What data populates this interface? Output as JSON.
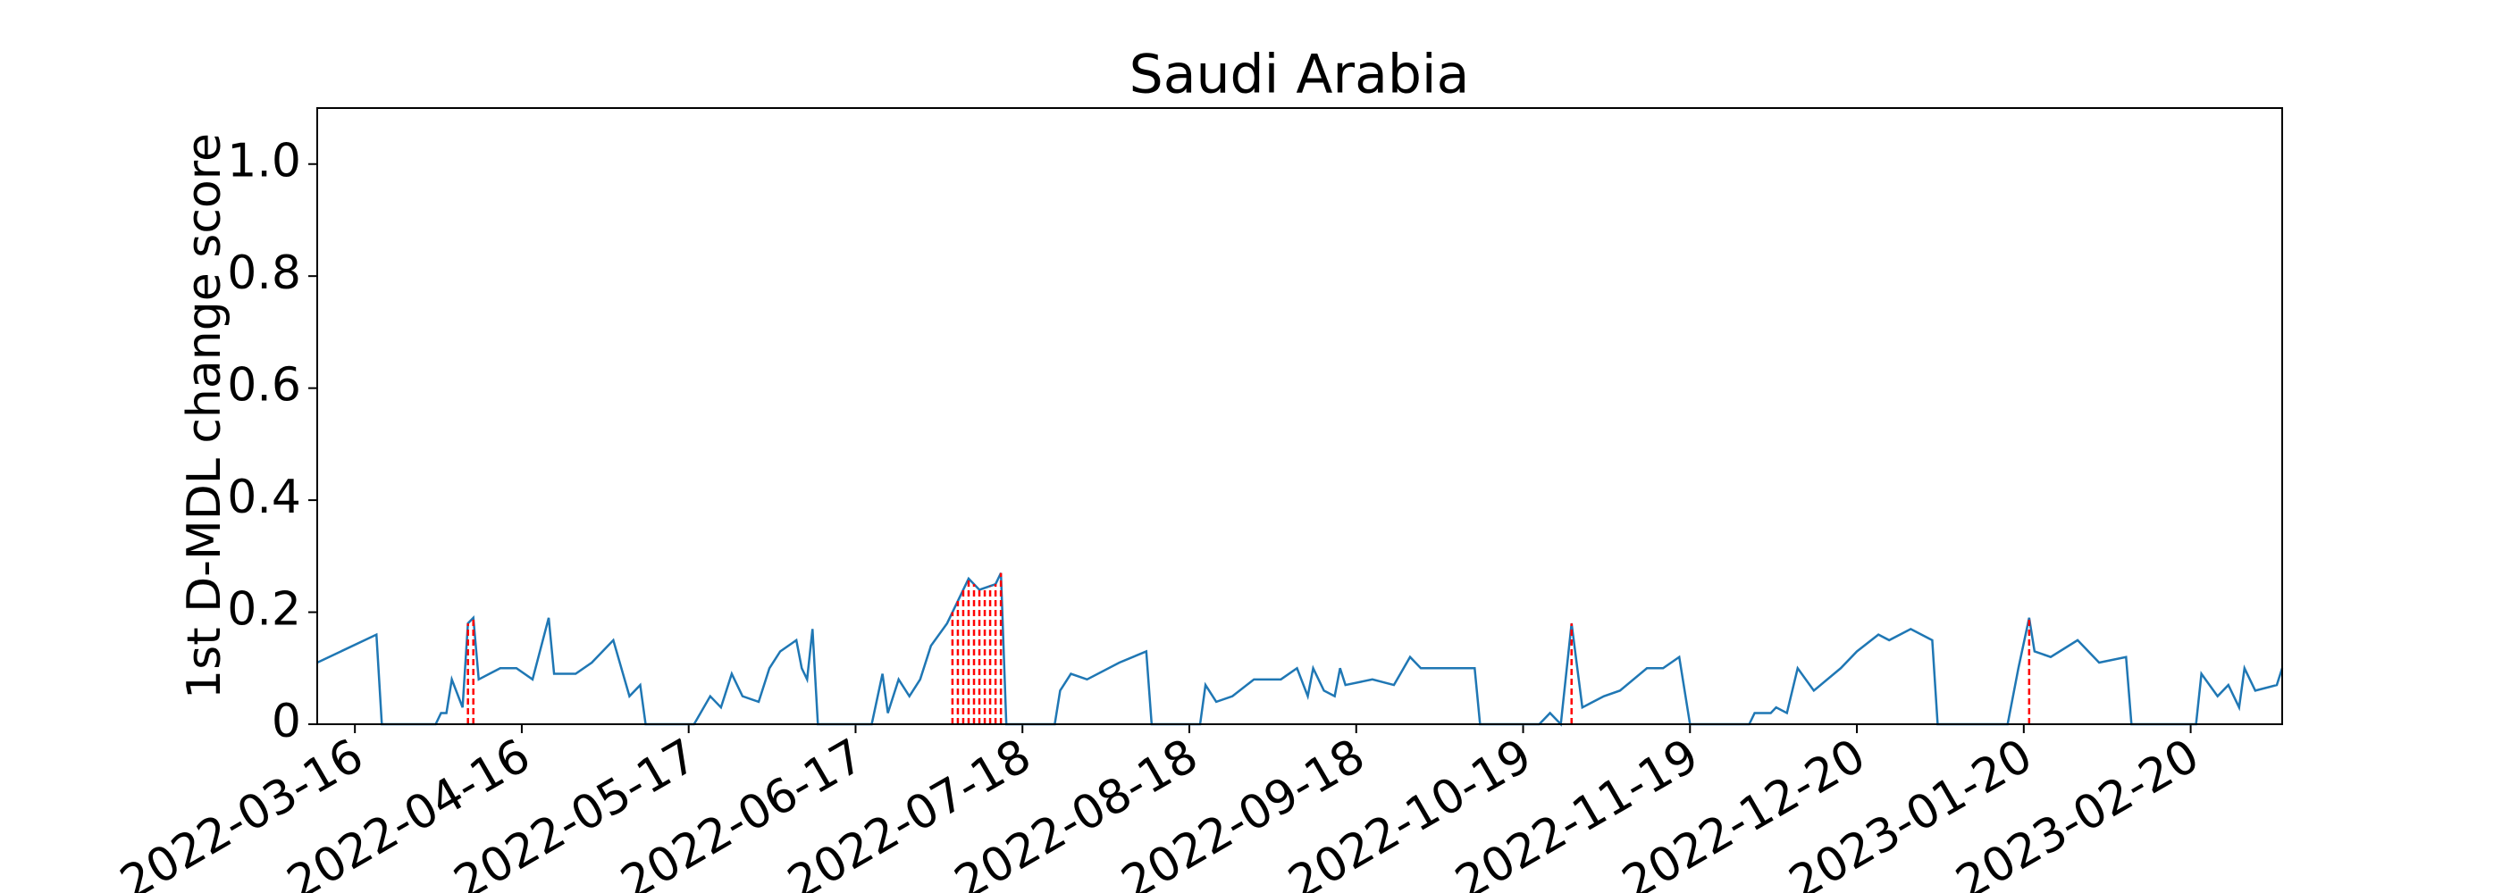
{
  "chart_data": {
    "type": "line",
    "title": "Saudi Arabia",
    "y_label": "1st D-MDL change score",
    "color": "#1f77b4",
    "x": [
      "2022-03-09",
      "2022-03-20",
      "2022-03-21",
      "2022-03-31",
      "2022-04-01",
      "2022-04-02",
      "2022-04-03",
      "2022-04-05",
      "2022-04-06",
      "2022-04-07",
      "2022-04-08",
      "2022-04-10",
      "2022-04-12",
      "2022-04-15",
      "2022-04-18",
      "2022-04-21",
      "2022-04-22",
      "2022-04-26",
      "2022-04-29",
      "2022-05-03",
      "2022-05-06",
      "2022-05-08",
      "2022-05-09",
      "2022-05-18",
      "2022-05-21",
      "2022-05-23",
      "2022-05-25",
      "2022-05-27",
      "2022-05-30",
      "2022-06-01",
      "2022-06-03",
      "2022-06-06",
      "2022-06-07",
      "2022-06-08",
      "2022-06-09",
      "2022-06-10",
      "2022-06-20",
      "2022-06-22",
      "2022-06-23",
      "2022-06-25",
      "2022-06-27",
      "2022-06-29",
      "2022-07-01",
      "2022-07-04",
      "2022-07-08",
      "2022-07-10",
      "2022-07-13",
      "2022-07-14",
      "2022-07-15",
      "2022-07-24",
      "2022-07-25",
      "2022-07-27",
      "2022-07-30",
      "2022-08-05",
      "2022-08-10",
      "2022-08-11",
      "2022-08-20",
      "2022-08-21",
      "2022-08-23",
      "2022-08-26",
      "2022-08-30",
      "2022-09-04",
      "2022-09-07",
      "2022-09-09",
      "2022-09-10",
      "2022-09-12",
      "2022-09-14",
      "2022-09-15",
      "2022-09-16",
      "2022-09-21",
      "2022-09-25",
      "2022-09-28",
      "2022-09-30",
      "2022-10-10",
      "2022-10-11",
      "2022-10-22",
      "2022-10-24",
      "2022-10-26",
      "2022-10-28",
      "2022-10-30",
      "2022-11-03",
      "2022-11-06",
      "2022-11-11",
      "2022-11-14",
      "2022-11-17",
      "2022-11-19",
      "2022-11-30",
      "2022-12-01",
      "2022-12-04",
      "2022-12-05",
      "2022-12-07",
      "2022-12-09",
      "2022-12-12",
      "2022-12-17",
      "2022-12-20",
      "2022-12-24",
      "2022-12-26",
      "2022-12-30",
      "2023-01-03",
      "2023-01-04",
      "2023-01-17",
      "2023-01-19",
      "2023-01-21",
      "2023-01-22",
      "2023-01-25",
      "2023-01-30",
      "2023-02-03",
      "2023-02-08",
      "2023-02-09",
      "2023-02-21",
      "2023-02-22",
      "2023-02-25",
      "2023-02-27",
      "2023-03-01",
      "2023-03-02",
      "2023-03-04",
      "2023-03-08",
      "2023-03-09"
    ],
    "values": [
      0.11,
      0.16,
      0,
      0,
      0.02,
      0.02,
      0.08,
      0.03,
      0.18,
      0.19,
      0.08,
      0.09,
      0.1,
      0.1,
      0.08,
      0.19,
      0.09,
      0.09,
      0.11,
      0.15,
      0.05,
      0.07,
      0,
      0,
      0.05,
      0.03,
      0.09,
      0.05,
      0.04,
      0.1,
      0.13,
      0.15,
      0.1,
      0.08,
      0.17,
      0,
      0,
      0.09,
      0.02,
      0.08,
      0.05,
      0.08,
      0.14,
      0.18,
      0.26,
      0.24,
      0.25,
      0.27,
      0,
      0,
      0.06,
      0.09,
      0.08,
      0.11,
      0.13,
      0,
      0,
      0.07,
      0.04,
      0.05,
      0.08,
      0.08,
      0.1,
      0.05,
      0.1,
      0.06,
      0.05,
      0.1,
      0.07,
      0.08,
      0.07,
      0.12,
      0.1,
      0.1,
      0,
      0,
      0.02,
      0,
      0.18,
      0.03,
      0.05,
      0.06,
      0.1,
      0.1,
      0.12,
      0,
      0,
      0.02,
      0.02,
      0.03,
      0.02,
      0.1,
      0.06,
      0.1,
      0.13,
      0.16,
      0.15,
      0.17,
      0.15,
      0,
      0,
      0.1,
      0.19,
      0.13,
      0.12,
      0.15,
      0.11,
      0.12,
      0,
      0,
      0.09,
      0.05,
      0.07,
      0.03,
      0.1,
      0.06,
      0.07,
      0.1
    ],
    "change_points": [
      "2022-04-06",
      "2022-04-07",
      "2022-07-05",
      "2022-07-06",
      "2022-07-07",
      "2022-07-08",
      "2022-07-09",
      "2022-07-10",
      "2022-07-11",
      "2022-07-12",
      "2022-07-13",
      "2022-07-14",
      "2022-10-28",
      "2023-01-21"
    ],
    "change_color": "#ff0000",
    "xlim": [
      "2022-03-09",
      "2023-03-09"
    ],
    "xticks": [
      "2022-03-16",
      "2022-04-16",
      "2022-05-17",
      "2022-06-17",
      "2022-07-18",
      "2022-08-18",
      "2022-09-18",
      "2022-10-19",
      "2022-11-19",
      "2022-12-20",
      "2023-01-20",
      "2023-02-20"
    ],
    "ylim": [
      0,
      1.1
    ],
    "yticks": [
      0.0,
      0.2,
      0.4,
      0.6,
      0.8,
      {
        "value": 1.0,
        "label": "1.0"
      }
    ]
  }
}
